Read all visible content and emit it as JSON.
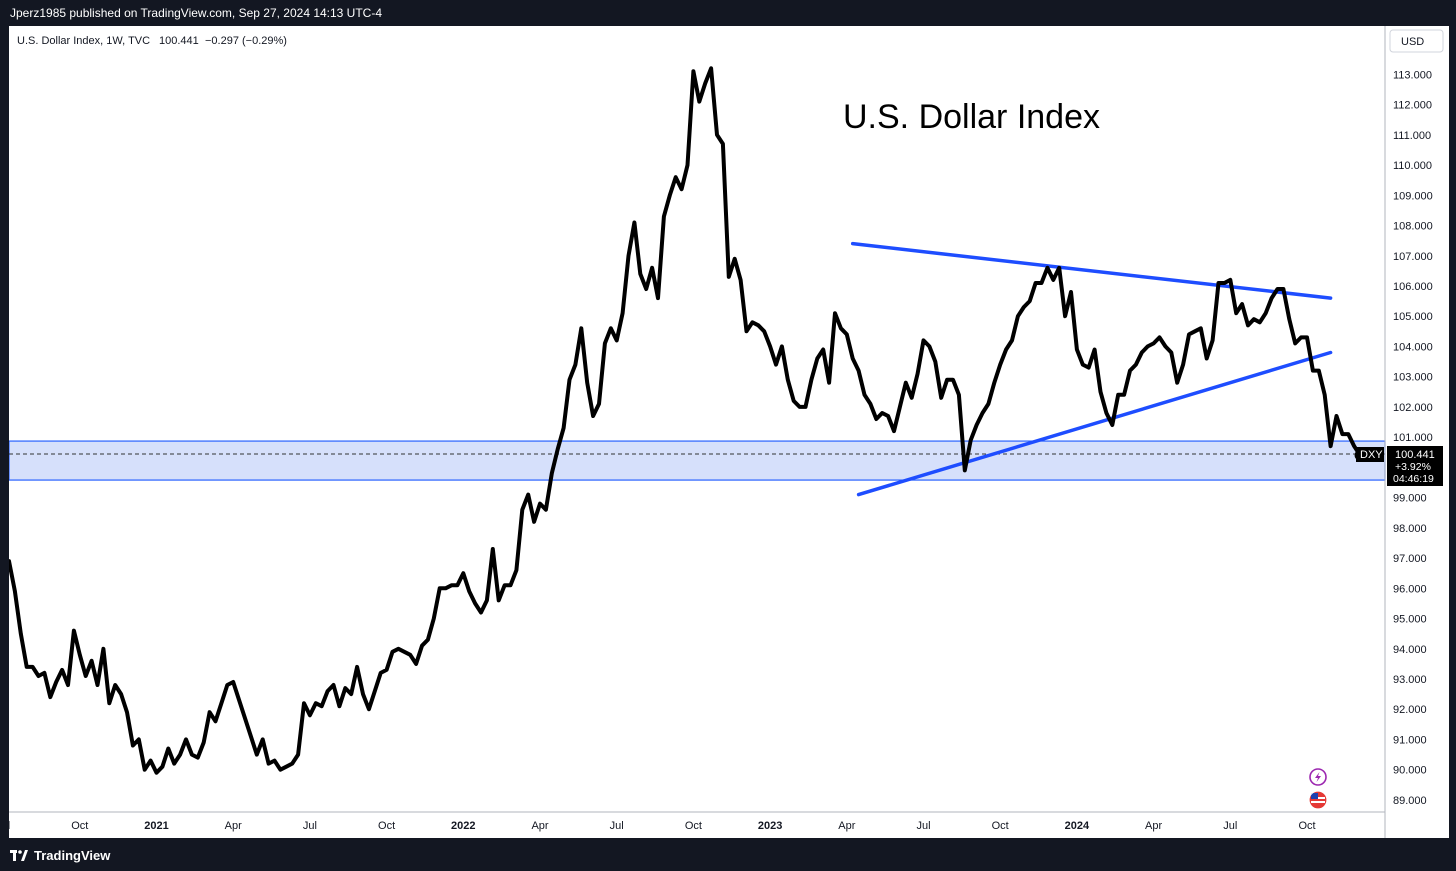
{
  "header": {
    "published_text": "Jperz1985 published on TradingView.com, Sep 27, 2024 14:13 UTC-4"
  },
  "footer": {
    "brand": "TradingView"
  },
  "legend": {
    "symbol": "U.S. Dollar Index, 1W, TVC",
    "last": "100.441",
    "change": "−0.297 (−0.29%)"
  },
  "currency_button": "USD",
  "price_tag": {
    "symbol": "DXY",
    "price": "100.441",
    "change_pct": "+3.92%",
    "countdown": "04:46:19"
  },
  "colors": {
    "line": "#000000",
    "trend_lines": "#1e4dff",
    "zone_fill": "#d6e0fb",
    "zone_border": "#2962ff",
    "price_tag_bg": "#000000"
  },
  "icons": [
    "lightning-icon",
    "us-flag-icon"
  ],
  "chart_data": {
    "type": "line",
    "title": "U.S. Dollar Index",
    "xlabel": "",
    "ylabel": "",
    "ylim": [
      88.6,
      114.6
    ],
    "grid": false,
    "y_ticks": [
      "89.000",
      "90.000",
      "91.000",
      "92.000",
      "93.000",
      "94.000",
      "95.000",
      "96.000",
      "97.000",
      "98.000",
      "99.000",
      "100.000",
      "101.000",
      "102.000",
      "103.000",
      "104.000",
      "105.000",
      "106.000",
      "107.000",
      "108.000",
      "109.000",
      "110.000",
      "111.000",
      "112.000",
      "113.000"
    ],
    "x_ticks": [
      {
        "label": "Jul",
        "week": -1,
        "bold": false
      },
      {
        "label": "Oct",
        "week": 12,
        "bold": false
      },
      {
        "label": "2021",
        "week": 25,
        "bold": true
      },
      {
        "label": "Apr",
        "week": 38,
        "bold": false
      },
      {
        "label": "Jul",
        "week": 51,
        "bold": false
      },
      {
        "label": "Oct",
        "week": 64,
        "bold": false
      },
      {
        "label": "2022",
        "week": 77,
        "bold": true
      },
      {
        "label": "Apr",
        "week": 90,
        "bold": false
      },
      {
        "label": "Jul",
        "week": 103,
        "bold": false
      },
      {
        "label": "Oct",
        "week": 116,
        "bold": false
      },
      {
        "label": "2023",
        "week": 129,
        "bold": true
      },
      {
        "label": "Apr",
        "week": 142,
        "bold": false
      },
      {
        "label": "Jul",
        "week": 155,
        "bold": false
      },
      {
        "label": "Oct",
        "week": 168,
        "bold": false
      },
      {
        "label": "2024",
        "week": 181,
        "bold": true
      },
      {
        "label": "Apr",
        "week": 194,
        "bold": false
      },
      {
        "label": "Jul",
        "week": 207,
        "bold": false
      },
      {
        "label": "Oct",
        "week": 220,
        "bold": false
      }
    ],
    "series": [
      {
        "x_start_week": 0,
        "values": [
          96.9,
          95.9,
          94.5,
          93.4,
          93.4,
          93.1,
          93.2,
          92.4,
          92.9,
          93.3,
          92.8,
          94.6,
          93.8,
          93.1,
          93.6,
          92.8,
          94.0,
          92.2,
          92.8,
          92.5,
          91.9,
          90.8,
          91.0,
          90.0,
          90.3,
          89.9,
          90.1,
          90.7,
          90.2,
          90.5,
          91.0,
          90.5,
          90.4,
          90.9,
          91.9,
          91.6,
          92.2,
          92.8,
          92.9,
          92.3,
          91.7,
          91.1,
          90.5,
          91.0,
          90.2,
          90.3,
          90.0,
          90.1,
          90.2,
          90.5,
          92.2,
          91.8,
          92.2,
          92.1,
          92.6,
          92.8,
          92.1,
          92.7,
          92.5,
          93.4,
          92.5,
          92.0,
          92.6,
          93.2,
          93.3,
          93.9,
          94.0,
          93.9,
          93.8,
          93.5,
          94.1,
          94.3,
          95.0,
          96.0,
          96.0,
          96.1,
          96.1,
          96.5,
          95.9,
          95.5,
          95.2,
          95.6,
          97.3,
          95.6,
          96.1,
          96.1,
          96.6,
          98.6,
          99.1,
          98.2,
          98.8,
          98.6,
          99.8,
          100.6,
          101.3,
          102.9,
          103.4,
          104.6,
          102.8,
          101.7,
          102.1,
          104.1,
          104.6,
          104.2,
          105.1,
          107.0,
          108.1,
          106.4,
          105.9,
          106.6,
          105.6,
          108.3,
          109.0,
          109.6,
          109.2,
          110.0,
          113.1,
          112.1,
          112.7,
          113.2,
          111.0,
          110.7,
          106.3,
          106.9,
          106.2,
          104.5,
          104.8,
          104.7,
          104.5,
          104.0,
          103.4,
          104.0,
          102.9,
          102.2,
          102.0,
          102.0,
          102.9,
          103.6,
          103.9,
          102.8,
          105.1,
          104.6,
          104.4,
          103.6,
          103.2,
          102.4,
          102.1,
          101.6,
          101.8,
          101.7,
          101.2,
          102.0,
          102.8,
          102.3,
          103.1,
          104.2,
          104.0,
          103.5,
          102.3,
          102.9,
          102.9,
          102.4,
          99.9,
          100.9,
          101.4,
          101.8,
          102.1,
          102.8,
          103.4,
          103.9,
          104.2,
          105.0,
          105.3,
          105.5,
          106.1,
          106.1,
          106.6,
          106.2,
          106.6,
          105.0,
          105.8,
          103.9,
          103.4,
          103.3,
          103.9,
          102.5,
          101.8,
          101.4,
          102.4,
          102.4,
          103.2,
          103.4,
          103.8,
          104.0,
          104.1,
          104.3,
          104.0,
          103.8,
          102.8,
          103.4,
          104.4,
          104.5,
          104.6,
          103.6,
          104.2,
          106.1,
          106.1,
          106.2,
          105.1,
          105.4,
          104.7,
          104.9,
          104.8,
          105.1,
          105.6,
          105.9,
          105.9,
          104.9,
          104.1,
          104.3,
          104.3,
          103.2,
          103.2,
          102.4,
          100.7,
          101.7,
          101.1,
          101.1,
          100.7,
          100.4
        ],
        "last_value": 100.441,
        "last_change_pct": "+3.92%"
      }
    ],
    "annotations": {
      "upper_trendline": {
        "from": {
          "week": 143,
          "value": 107.4
        },
        "to": {
          "week": 224,
          "value": 105.6
        }
      },
      "lower_trendline": {
        "from": {
          "week": 144,
          "value": 99.1
        },
        "to": {
          "week": 224,
          "value": 103.8
        }
      },
      "support_zone": {
        "low": 99.58,
        "high": 100.87
      },
      "current_price_line": 100.441
    }
  }
}
